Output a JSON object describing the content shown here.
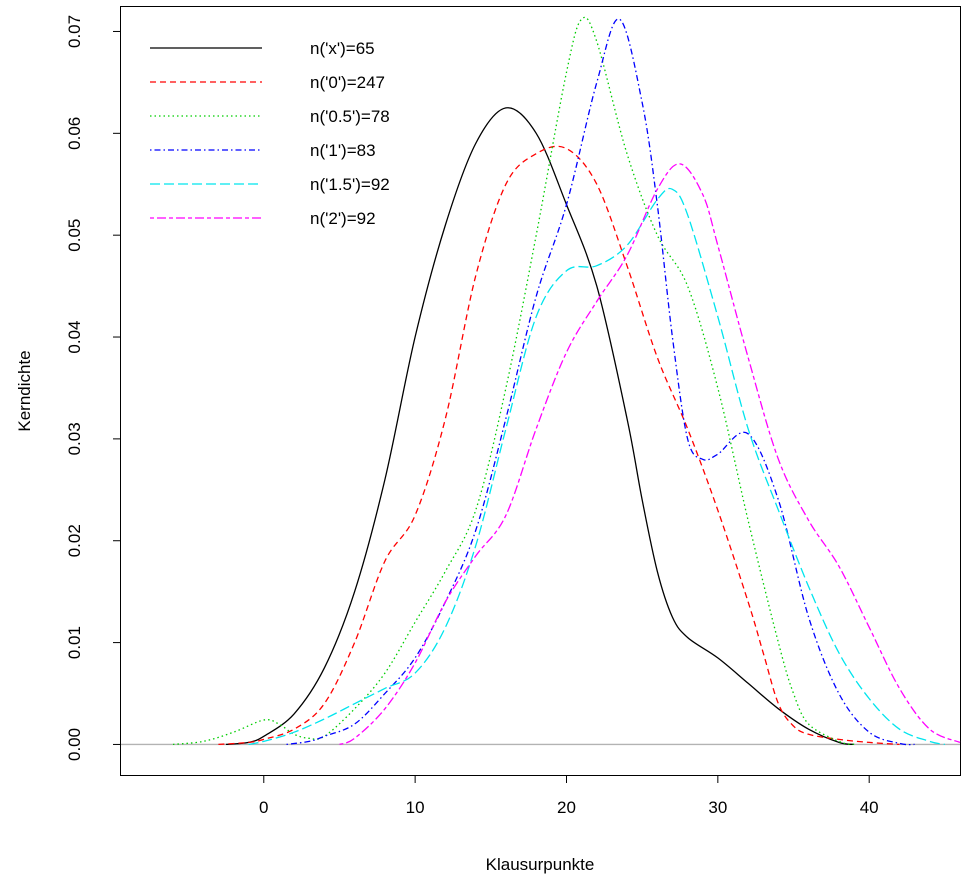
{
  "chart_data": {
    "type": "line",
    "title": "",
    "xlabel": "Klausurpunkte",
    "ylabel": "Kerndichte",
    "xlim": [
      -9.5,
      46
    ],
    "ylim": [
      -0.003,
      0.0725
    ],
    "x_ticks": [
      0,
      10,
      20,
      30,
      40
    ],
    "x_tick_labels": [
      "0",
      "10",
      "20",
      "30",
      "40"
    ],
    "y_ticks": [
      0.0,
      0.01,
      0.02,
      0.03,
      0.04,
      0.05,
      0.06,
      0.07
    ],
    "y_tick_labels": [
      "0.00",
      "0.01",
      "0.02",
      "0.03",
      "0.04",
      "0.05",
      "0.06",
      "0.07"
    ],
    "grid": false,
    "legend_position": "top-left",
    "baseline": {
      "y": 0,
      "color": "#b3b3b3"
    },
    "series": [
      {
        "name": "n('x')=65",
        "color": "#000000",
        "dash": "solid",
        "points": [
          [
            -2.5,
            0
          ],
          [
            -1,
            0.0002
          ],
          [
            0,
            0.0008
          ],
          [
            2,
            0.003
          ],
          [
            4,
            0.0075
          ],
          [
            6,
            0.015
          ],
          [
            8,
            0.026
          ],
          [
            10,
            0.04
          ],
          [
            12,
            0.051
          ],
          [
            14,
            0.059
          ],
          [
            16,
            0.0625
          ],
          [
            18,
            0.06
          ],
          [
            20,
            0.053
          ],
          [
            22,
            0.045
          ],
          [
            24,
            0.032
          ],
          [
            25,
            0.024
          ],
          [
            26,
            0.017
          ],
          [
            27,
            0.0125
          ],
          [
            28,
            0.0105
          ],
          [
            30,
            0.0085
          ],
          [
            32,
            0.006
          ],
          [
            34,
            0.0035
          ],
          [
            36,
            0.0015
          ],
          [
            38,
            0.0002
          ],
          [
            39,
            0
          ]
        ]
      },
      {
        "name": "n('0')=247",
        "color": "#ff0000",
        "dash": "dashed",
        "points": [
          [
            -3,
            0
          ],
          [
            -1,
            0.0002
          ],
          [
            0,
            0.0005
          ],
          [
            2,
            0.0015
          ],
          [
            4,
            0.004
          ],
          [
            6,
            0.01
          ],
          [
            8,
            0.018
          ],
          [
            10,
            0.0225
          ],
          [
            12,
            0.032
          ],
          [
            14,
            0.046
          ],
          [
            16,
            0.055
          ],
          [
            18,
            0.058
          ],
          [
            20,
            0.0585
          ],
          [
            22,
            0.055
          ],
          [
            24,
            0.047
          ],
          [
            26,
            0.038
          ],
          [
            28,
            0.031
          ],
          [
            30,
            0.023
          ],
          [
            32,
            0.014
          ],
          [
            33,
            0.009
          ],
          [
            34,
            0.004
          ],
          [
            35,
            0.0018
          ],
          [
            36,
            0.001
          ],
          [
            38,
            0.0005
          ],
          [
            40,
            0.0002
          ],
          [
            42,
            0
          ]
        ]
      },
      {
        "name": "n('0.5')=78",
        "color": "#00cd00",
        "dash": "dotted",
        "points": [
          [
            -6,
            0
          ],
          [
            -4,
            0.0003
          ],
          [
            -2,
            0.0012
          ],
          [
            0,
            0.0024
          ],
          [
            1,
            0.002
          ],
          [
            2,
            0.001
          ],
          [
            3,
            0.0006
          ],
          [
            4,
            0.0008
          ],
          [
            6,
            0.0035
          ],
          [
            8,
            0.007
          ],
          [
            10,
            0.012
          ],
          [
            12,
            0.017
          ],
          [
            14,
            0.023
          ],
          [
            16,
            0.035
          ],
          [
            18,
            0.05
          ],
          [
            20,
            0.066
          ],
          [
            21,
            0.0712
          ],
          [
            22,
            0.069
          ],
          [
            24,
            0.058
          ],
          [
            26,
            0.05
          ],
          [
            28,
            0.045
          ],
          [
            30,
            0.035
          ],
          [
            32,
            0.022
          ],
          [
            34,
            0.01
          ],
          [
            35,
            0.005
          ],
          [
            36,
            0.002
          ],
          [
            38,
            0.0003
          ],
          [
            39,
            0
          ]
        ]
      },
      {
        "name": "n('1')=83",
        "color": "#0000ff",
        "dash": "dotdash",
        "points": [
          [
            1.5,
            0
          ],
          [
            3,
            0.0003
          ],
          [
            4,
            0.0008
          ],
          [
            6,
            0.002
          ],
          [
            8,
            0.005
          ],
          [
            10,
            0.0085
          ],
          [
            12,
            0.014
          ],
          [
            14,
            0.021
          ],
          [
            16,
            0.032
          ],
          [
            18,
            0.044
          ],
          [
            20,
            0.053
          ],
          [
            22,
            0.065
          ],
          [
            23.5,
            0.0712
          ],
          [
            25,
            0.063
          ],
          [
            26,
            0.053
          ],
          [
            27,
            0.04
          ],
          [
            28,
            0.03
          ],
          [
            29,
            0.028
          ],
          [
            30,
            0.0285
          ],
          [
            32,
            0.0305
          ],
          [
            34,
            0.024
          ],
          [
            36,
            0.0125
          ],
          [
            38,
            0.005
          ],
          [
            40,
            0.0012
          ],
          [
            42,
            0.0001
          ],
          [
            43,
            0
          ]
        ]
      },
      {
        "name": "n('1.5')=92",
        "color": "#00e5ee",
        "dash": "longdash",
        "points": [
          [
            -1,
            0
          ],
          [
            0,
            0.0003
          ],
          [
            2,
            0.0012
          ],
          [
            4,
            0.0025
          ],
          [
            6,
            0.004
          ],
          [
            8,
            0.0055
          ],
          [
            10,
            0.007
          ],
          [
            12,
            0.0115
          ],
          [
            14,
            0.0195
          ],
          [
            16,
            0.031
          ],
          [
            18,
            0.042
          ],
          [
            20,
            0.0465
          ],
          [
            22,
            0.047
          ],
          [
            24,
            0.049
          ],
          [
            26,
            0.0535
          ],
          [
            27,
            0.0545
          ],
          [
            28,
            0.052
          ],
          [
            30,
            0.042
          ],
          [
            32,
            0.031
          ],
          [
            34,
            0.023
          ],
          [
            36,
            0.0155
          ],
          [
            38,
            0.009
          ],
          [
            40,
            0.0045
          ],
          [
            42,
            0.0015
          ],
          [
            44,
            0.0003
          ],
          [
            45,
            0
          ]
        ]
      },
      {
        "name": "n('2')=92",
        "color": "#ff00ff",
        "dash": "twodash",
        "points": [
          [
            5,
            0
          ],
          [
            6,
            0.0006
          ],
          [
            8,
            0.0035
          ],
          [
            10,
            0.008
          ],
          [
            12,
            0.014
          ],
          [
            14,
            0.0185
          ],
          [
            16,
            0.0225
          ],
          [
            18,
            0.031
          ],
          [
            20,
            0.0385
          ],
          [
            22,
            0.0435
          ],
          [
            24,
            0.048
          ],
          [
            26,
            0.0545
          ],
          [
            27.5,
            0.057
          ],
          [
            29,
            0.054
          ],
          [
            30,
            0.049
          ],
          [
            32,
            0.038
          ],
          [
            34,
            0.028
          ],
          [
            36,
            0.022
          ],
          [
            38,
            0.0175
          ],
          [
            40,
            0.0115
          ],
          [
            42,
            0.0055
          ],
          [
            44,
            0.0015
          ],
          [
            46,
            0.0002
          ]
        ]
      }
    ]
  }
}
